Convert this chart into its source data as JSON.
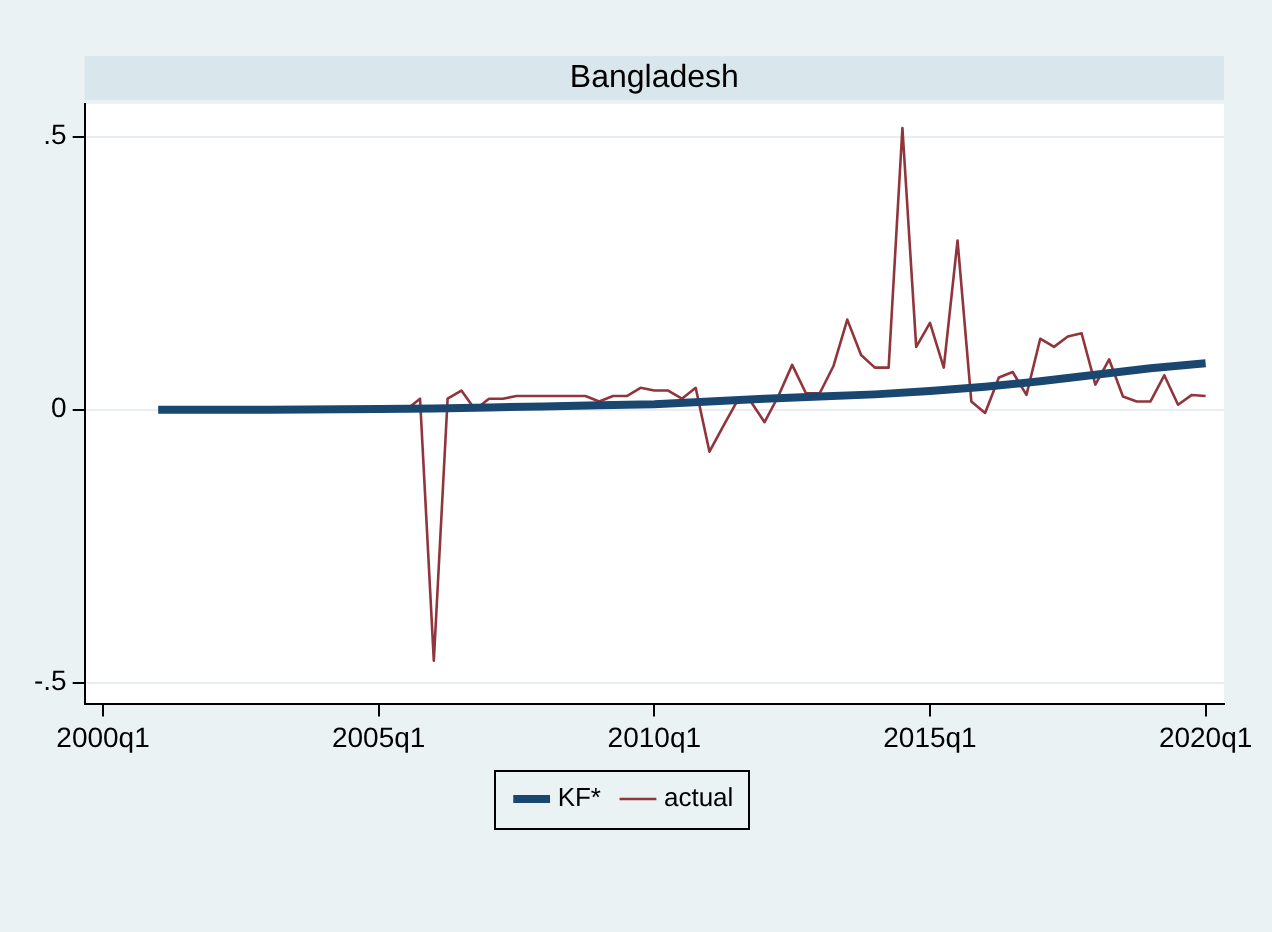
{
  "chart_data": {
    "type": "line",
    "title": "Bangladesh",
    "xlim": [
      "1999-09",
      "2020-05"
    ],
    "xticks": [
      {
        "value": "2000-01",
        "label": "2000q1"
      },
      {
        "value": "2005-01",
        "label": "2005q1"
      },
      {
        "value": "2010-01",
        "label": "2010q1"
      },
      {
        "value": "2015-01",
        "label": "2015q1"
      },
      {
        "value": "2020-01",
        "label": "2020q1"
      }
    ],
    "ylim": [
      -0.54,
      0.56
    ],
    "yticks": [
      {
        "value": -0.5,
        "label": "-.5"
      },
      {
        "value": 0,
        "label": "0"
      },
      {
        "value": 0.5,
        "label": ".5"
      }
    ],
    "grid": "y",
    "legend": "bottom",
    "marker": "none",
    "series": [
      {
        "name": "KF*",
        "color": "#1a476f",
        "x": [
          "2001-01",
          "2003-01",
          "2005-01",
          "2006-01",
          "2007-01",
          "2008-01",
          "2009-01",
          "2010-01",
          "2011-01",
          "2012-01",
          "2013-01",
          "2014-01",
          "2015-01",
          "2016-01",
          "2017-01",
          "2018-01",
          "2019-01",
          "2020-01"
        ],
        "values": [
          0,
          0,
          0.001,
          0.002,
          0.004,
          0.006,
          0.008,
          0.01,
          0.015,
          0.02,
          0.024,
          0.028,
          0.034,
          0.042,
          0.052,
          0.064,
          0.076,
          0.085
        ]
      },
      {
        "name": "actual",
        "color": "#90353b",
        "x": [
          "2005-04",
          "2005-07",
          "2005-10",
          "2006-01",
          "2006-04",
          "2006-07",
          "2006-10",
          "2007-01",
          "2007-04",
          "2007-07",
          "2007-10",
          "2008-01",
          "2008-04",
          "2008-07",
          "2008-10",
          "2009-01",
          "2009-04",
          "2009-07",
          "2009-10",
          "2010-01",
          "2010-04",
          "2010-07",
          "2010-10",
          "2011-01",
          "2011-04",
          "2011-07",
          "2011-10",
          "2012-01",
          "2012-04",
          "2012-07",
          "2012-10",
          "2013-01",
          "2013-04",
          "2013-07",
          "2013-10",
          "2014-01",
          "2014-04",
          "2014-07",
          "2014-10",
          "2015-01",
          "2015-04",
          "2015-07",
          "2015-10",
          "2016-01",
          "2016-04",
          "2016-07",
          "2016-10",
          "2017-01",
          "2017-04",
          "2017-07",
          "2017-10",
          "2018-01",
          "2018-04",
          "2018-07",
          "2018-10",
          "2019-01",
          "2019-04",
          "2019-07",
          "2019-10",
          "2020-01"
        ],
        "values": [
          0,
          0,
          0.02,
          -0.46,
          0.02,
          0.035,
          0,
          0.02,
          0.02,
          0.025,
          0.025,
          0.025,
          0.025,
          0.025,
          0.025,
          0.015,
          0.025,
          0.025,
          0.04,
          0.035,
          0.035,
          0.02,
          0.04,
          -0.077,
          -0.03,
          0.015,
          0.015,
          -0.023,
          0.025,
          0.082,
          0.03,
          0.03,
          0.08,
          0.165,
          0.1,
          0.077,
          0.077,
          0.516,
          0.115,
          0.159,
          0.077,
          0.31,
          0.015,
          -0.006,
          0.059,
          0.069,
          0.027,
          0.13,
          0.115,
          0.134,
          0.14,
          0.046,
          0.092,
          0.024,
          0.015,
          0.015,
          0.063,
          0.009,
          0.027,
          0.025
        ]
      }
    ]
  }
}
